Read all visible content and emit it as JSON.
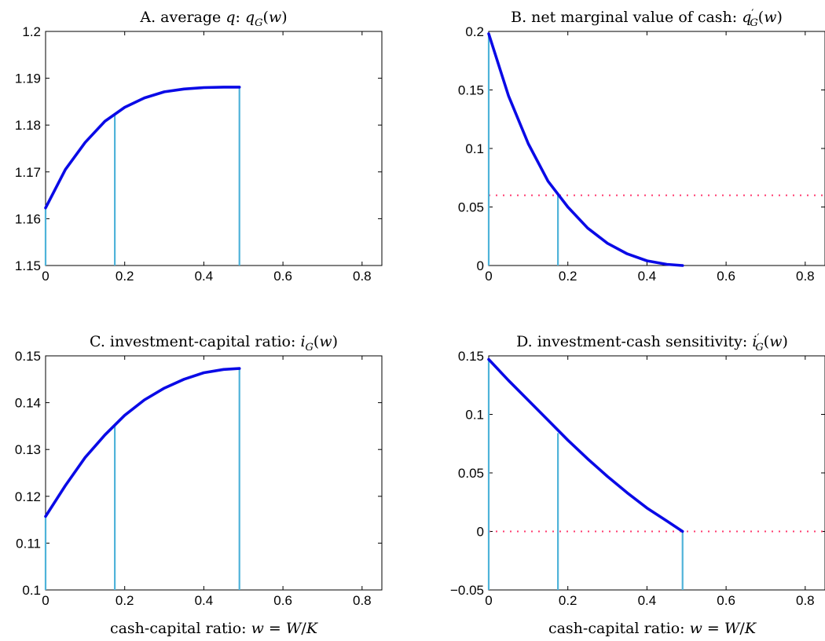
{
  "figure": {
    "x_ticks": [
      "0",
      "0.2",
      "0.4",
      "0.6",
      "0.8"
    ],
    "colors": {
      "curve": "#0a0ae6",
      "marker": "#4fb3d9",
      "reference": "#ff3b6f",
      "axes": "#000000"
    }
  },
  "chart_data": [
    {
      "id": "A",
      "type": "line",
      "title": "A. average q: q_G(w)",
      "xlabel": "",
      "ylabel": "",
      "xlim": [
        0,
        0.85
      ],
      "ylim": [
        1.15,
        1.2
      ],
      "x_tick_labels": [
        "0",
        "0.2",
        "0.4",
        "0.6",
        "0.8"
      ],
      "y_ticks": [
        1.15,
        1.16,
        1.17,
        1.18,
        1.19,
        1.2
      ],
      "y_tick_labels": [
        "1.15",
        "1.16",
        "1.17",
        "1.18",
        "1.19",
        "1.2"
      ],
      "series": [
        {
          "x": [
            0,
            0.05,
            0.1,
            0.15,
            0.2,
            0.25,
            0.3,
            0.35,
            0.4,
            0.45,
            0.49
          ],
          "y": [
            1.1623,
            1.1705,
            1.1763,
            1.1808,
            1.1838,
            1.1858,
            1.1871,
            1.1877,
            1.188,
            1.1881,
            1.1881
          ]
        }
      ],
      "vertical_lines": [
        {
          "x": 0,
          "y_top": 1.1623
        },
        {
          "x": 0.175,
          "y_top": 1.1825
        },
        {
          "x": 0.49,
          "y_top": 1.1881
        }
      ],
      "reference_line": null,
      "grid": false
    },
    {
      "id": "B",
      "type": "line",
      "title": "B. net marginal value of cash: q′_G(w)",
      "xlabel": "",
      "ylabel": "",
      "xlim": [
        0,
        0.85
      ],
      "ylim": [
        0,
        0.2
      ],
      "x_tick_labels": [
        "0",
        "0.2",
        "0.4",
        "0.6",
        "0.8"
      ],
      "y_ticks": [
        0,
        0.05,
        0.1,
        0.15,
        0.2
      ],
      "y_tick_labels": [
        "0",
        "0.05",
        "0.1",
        "0.15",
        "0.2"
      ],
      "series": [
        {
          "x": [
            0,
            0.05,
            0.1,
            0.15,
            0.2,
            0.25,
            0.3,
            0.35,
            0.4,
            0.45,
            0.49
          ],
          "y": [
            0.198,
            0.145,
            0.104,
            0.072,
            0.05,
            0.032,
            0.019,
            0.01,
            0.004,
            0.001,
            0.0
          ]
        }
      ],
      "vertical_lines": [
        {
          "x": 0,
          "y_top": 0.198
        },
        {
          "x": 0.175,
          "y_top": 0.06
        }
      ],
      "reference_line": {
        "y": 0.06
      },
      "grid": false
    },
    {
      "id": "C",
      "type": "line",
      "title": "C. investment-capital ratio: i_G(w)",
      "xlabel": "cash-capital ratio: w = W/K",
      "ylabel": "",
      "xlim": [
        0,
        0.85
      ],
      "ylim": [
        0.1,
        0.15
      ],
      "x_tick_labels": [
        "0",
        "0.2",
        "0.4",
        "0.6",
        "0.8"
      ],
      "y_ticks": [
        0.1,
        0.11,
        0.12,
        0.13,
        0.14,
        0.15
      ],
      "y_tick_labels": [
        "0.1",
        "0.11",
        "0.12",
        "0.13",
        "0.14",
        "0.15"
      ],
      "series": [
        {
          "x": [
            0,
            0.05,
            0.1,
            0.15,
            0.2,
            0.25,
            0.3,
            0.35,
            0.4,
            0.45,
            0.49
          ],
          "y": [
            0.1157,
            0.1223,
            0.1283,
            0.1331,
            0.1373,
            0.1406,
            0.1431,
            0.145,
            0.1464,
            0.1471,
            0.1473
          ]
        }
      ],
      "vertical_lines": [
        {
          "x": 0,
          "y_top": 0.1157
        },
        {
          "x": 0.175,
          "y_top": 0.1352
        },
        {
          "x": 0.49,
          "y_top": 0.1473
        }
      ],
      "reference_line": null,
      "grid": false
    },
    {
      "id": "D",
      "type": "line",
      "title": "D. investment-cash sensitivity: i′_G(w)",
      "xlabel": "cash-capital ratio: w = W/K",
      "ylabel": "",
      "xlim": [
        0,
        0.85
      ],
      "ylim": [
        -0.05,
        0.15
      ],
      "x_tick_labels": [
        "0",
        "0.2",
        "0.4",
        "0.6",
        "0.8"
      ],
      "y_ticks": [
        -0.05,
        0,
        0.05,
        0.1,
        0.15
      ],
      "y_tick_labels": [
        "−0.05",
        "0",
        "0.05",
        "0.1",
        "0.15"
      ],
      "series": [
        {
          "x": [
            0,
            0.05,
            0.1,
            0.15,
            0.2,
            0.25,
            0.3,
            0.35,
            0.4,
            0.45,
            0.49
          ],
          "y": [
            0.147,
            0.129,
            0.112,
            0.095,
            0.078,
            0.062,
            0.047,
            0.033,
            0.02,
            0.009,
            0.0
          ]
        }
      ],
      "vertical_lines": [
        {
          "x": 0,
          "y_top": 0.147,
          "y_bottom": -0.05
        },
        {
          "x": 0.175,
          "y_top": 0.084,
          "y_bottom": -0.05
        },
        {
          "x": 0.49,
          "y_top": 0.0,
          "y_bottom": -0.05
        }
      ],
      "reference_line": {
        "y": 0
      },
      "grid": false
    }
  ]
}
